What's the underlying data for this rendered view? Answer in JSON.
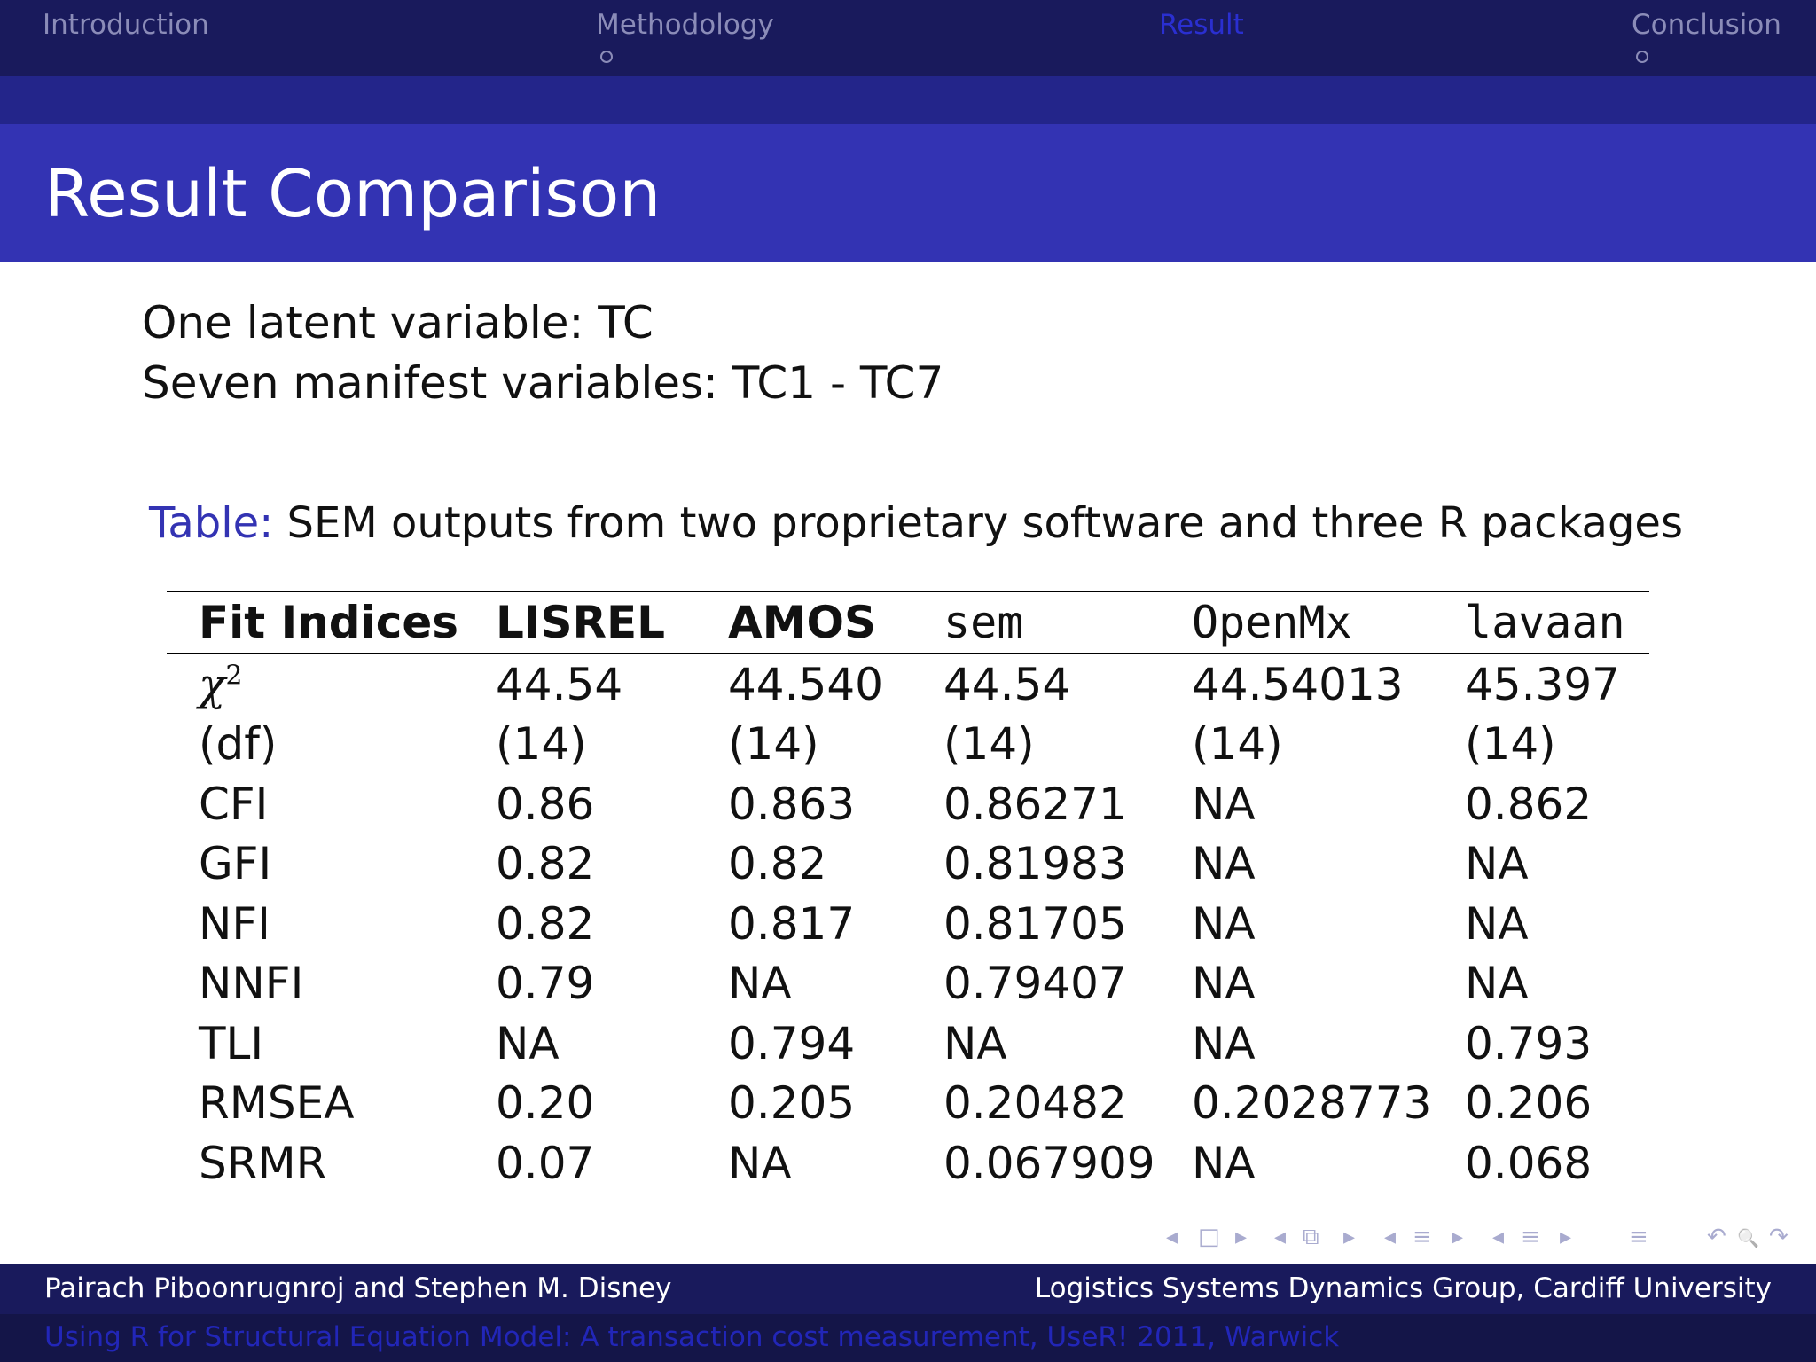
{
  "nav": {
    "sections": [
      {
        "label": "Introduction",
        "active": false
      },
      {
        "label": "Methodology",
        "active": false
      },
      {
        "label": "Result",
        "active": true
      },
      {
        "label": "Conclusion",
        "active": false
      }
    ]
  },
  "slide": {
    "title": "Result Comparison",
    "intro_line1": "One latent variable:  TC",
    "intro_line2": "Seven manifest variables:  TC1 - TC7",
    "caption_label": "Table:",
    "caption_text": " SEM outputs from two proprietary software and three R packages"
  },
  "table": {
    "headers": [
      "Fit Indices",
      "LISREL",
      "AMOS",
      "sem",
      "OpenMx",
      "lavaan"
    ],
    "chi_symbol": "χ",
    "chi_sup": "2",
    "rows": [
      [
        "χ2",
        "44.54",
        "44.540",
        "44.54",
        "44.54013",
        "45.397"
      ],
      [
        "(df)",
        "(14)",
        "(14)",
        "(14)",
        "(14)",
        "(14)"
      ],
      [
        "CFI",
        "0.86",
        "0.863",
        "0.86271",
        "NA",
        "0.862"
      ],
      [
        "GFI",
        "0.82",
        "0.82",
        "0.81983",
        "NA",
        "NA"
      ],
      [
        "NFI",
        "0.82",
        "0.817",
        "0.81705",
        "NA",
        "NA"
      ],
      [
        "NNFI",
        "0.79",
        "NA",
        "0.79407",
        "NA",
        "NA"
      ],
      [
        "TLI",
        "NA",
        "0.794",
        "NA",
        "NA",
        "0.793"
      ],
      [
        "RMSEA",
        "0.20",
        "0.205",
        "0.20482",
        "0.2028773",
        "0.206"
      ],
      [
        "SRMR",
        "0.07",
        "NA",
        "0.067909",
        "NA",
        "0.068"
      ]
    ]
  },
  "nav_symbols": {
    "prev_frame": "◂",
    "frame": "□",
    "next_frame": "▸",
    "prev_sub": "◂",
    "subsection": "⧉",
    "next_sub": "▸",
    "prev_sec": "◂",
    "section": "≡",
    "next_sec": "▸",
    "prev_doc": "◂",
    "document": "≡",
    "next_doc": "▸",
    "appendix": "≡",
    "back": "↶",
    "search": "🔍",
    "forward": "↷"
  },
  "footer": {
    "authors": "Pairach Piboonrugnroj and Stephen M. Disney",
    "institution": "Logistics Systems Dynamics Group, Cardiff University",
    "talk": "Using R for Structural Equation Model:  A transaction cost measurement, UseR! 2011, Warwick"
  }
}
